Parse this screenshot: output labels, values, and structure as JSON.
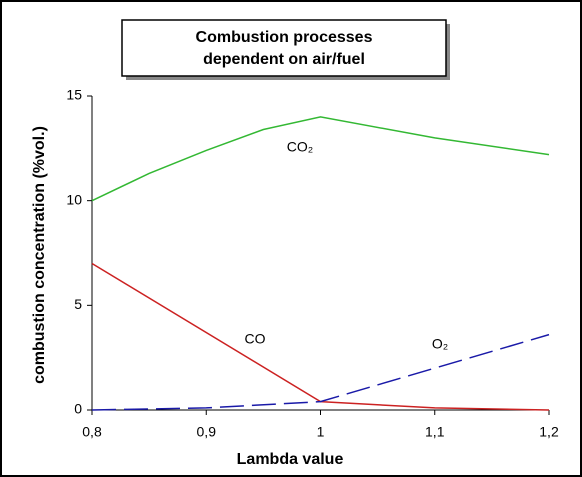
{
  "chart_data": {
    "type": "line",
    "title": [
      "Combustion processes",
      "dependent on air/fuel"
    ],
    "x_label": "Lambda value",
    "y_label": "combustion concentration (%vol.)",
    "xlim": [
      0.8,
      1.2
    ],
    "xticks": [
      {
        "value": 0.8,
        "label": "0,8"
      },
      {
        "value": 0.9,
        "label": "0,9"
      },
      {
        "value": 1,
        "label": "1"
      },
      {
        "value": 1.1,
        "label": "1,1"
      },
      {
        "value": 1.2,
        "label": "1,2"
      }
    ],
    "ylim": [
      0,
      15
    ],
    "yticks": [
      0,
      5,
      10,
      15
    ],
    "series": [
      {
        "name": "CO₂",
        "color": "#33b833",
        "x": [
          0.8,
          0.85,
          0.9,
          0.95,
          1.0,
          1.1,
          1.2
        ],
        "values": [
          10,
          11.3,
          12.4,
          13.4,
          14,
          13,
          12.2
        ]
      },
      {
        "name": "CO",
        "color": "#cc2222",
        "x": [
          0.8,
          1.0,
          1.1,
          1.2
        ],
        "values": [
          7,
          0.4,
          0.1,
          0
        ]
      },
      {
        "name": "O₂",
        "color": "#1a1aa8",
        "dashed": true,
        "x": [
          0.8,
          0.9,
          1.0,
          1.1,
          1.2
        ],
        "values": [
          0,
          0.1,
          0.4,
          2,
          3.6
        ]
      }
    ]
  }
}
